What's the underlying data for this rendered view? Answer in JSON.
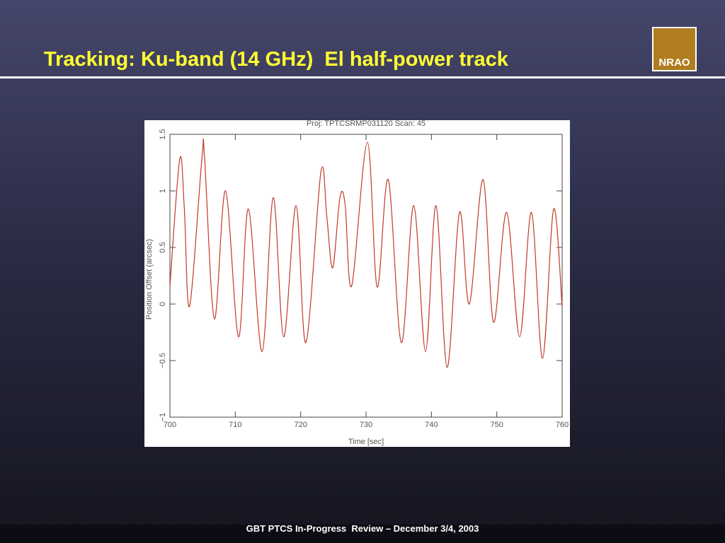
{
  "slide": {
    "title": "Tracking: Ku-band (14 GHz)  El half-power track",
    "logo": "NRAO",
    "footer": "GBT PTCS In-Progress  Review – December 3/4, 2003"
  },
  "chart_data": {
    "type": "line",
    "title": "Proj: TPTCSRMP031120 Scan: 45",
    "x_label": "Time [sec]",
    "y_label": "Position Offset (arcsec)",
    "x": [
      700.0,
      701.5,
      702.2,
      703.0,
      704.9,
      705.3,
      706.8,
      708.5,
      710.5,
      712.0,
      714.1,
      715.8,
      717.4,
      719.3,
      720.8,
      723.1,
      724.0,
      724.9,
      726.0,
      726.8,
      727.8,
      730.2,
      731.7,
      733.4,
      735.4,
      737.3,
      739.1,
      740.7,
      742.4,
      744.3,
      745.8,
      747.9,
      749.5,
      751.5,
      753.5,
      755.3,
      757.0,
      758.7,
      760.0
    ],
    "values": [
      0.16,
      1.28,
      0.85,
      -0.02,
      1.29,
      1.29,
      -0.13,
      1.0,
      -0.29,
      0.84,
      -0.42,
      0.94,
      -0.29,
      0.87,
      -0.34,
      1.17,
      0.77,
      0.32,
      0.94,
      0.88,
      0.16,
      1.43,
      0.15,
      1.1,
      -0.34,
      0.87,
      -0.42,
      0.87,
      -0.56,
      0.81,
      0.0,
      1.1,
      -0.16,
      0.81,
      -0.29,
      0.81,
      -0.48,
      0.84,
      -0.03
    ],
    "color": "#c0392b",
    "xlim": [
      700,
      760
    ],
    "xticks": [
      700,
      710,
      720,
      730,
      740,
      750,
      760
    ],
    "ylim": [
      -1,
      1.5
    ],
    "yticks": [
      {
        "value": -1,
        "label": "−1"
      },
      {
        "value": -0.5,
        "label": "−0.5"
      },
      0,
      0.5,
      1,
      1.5
    ]
  }
}
